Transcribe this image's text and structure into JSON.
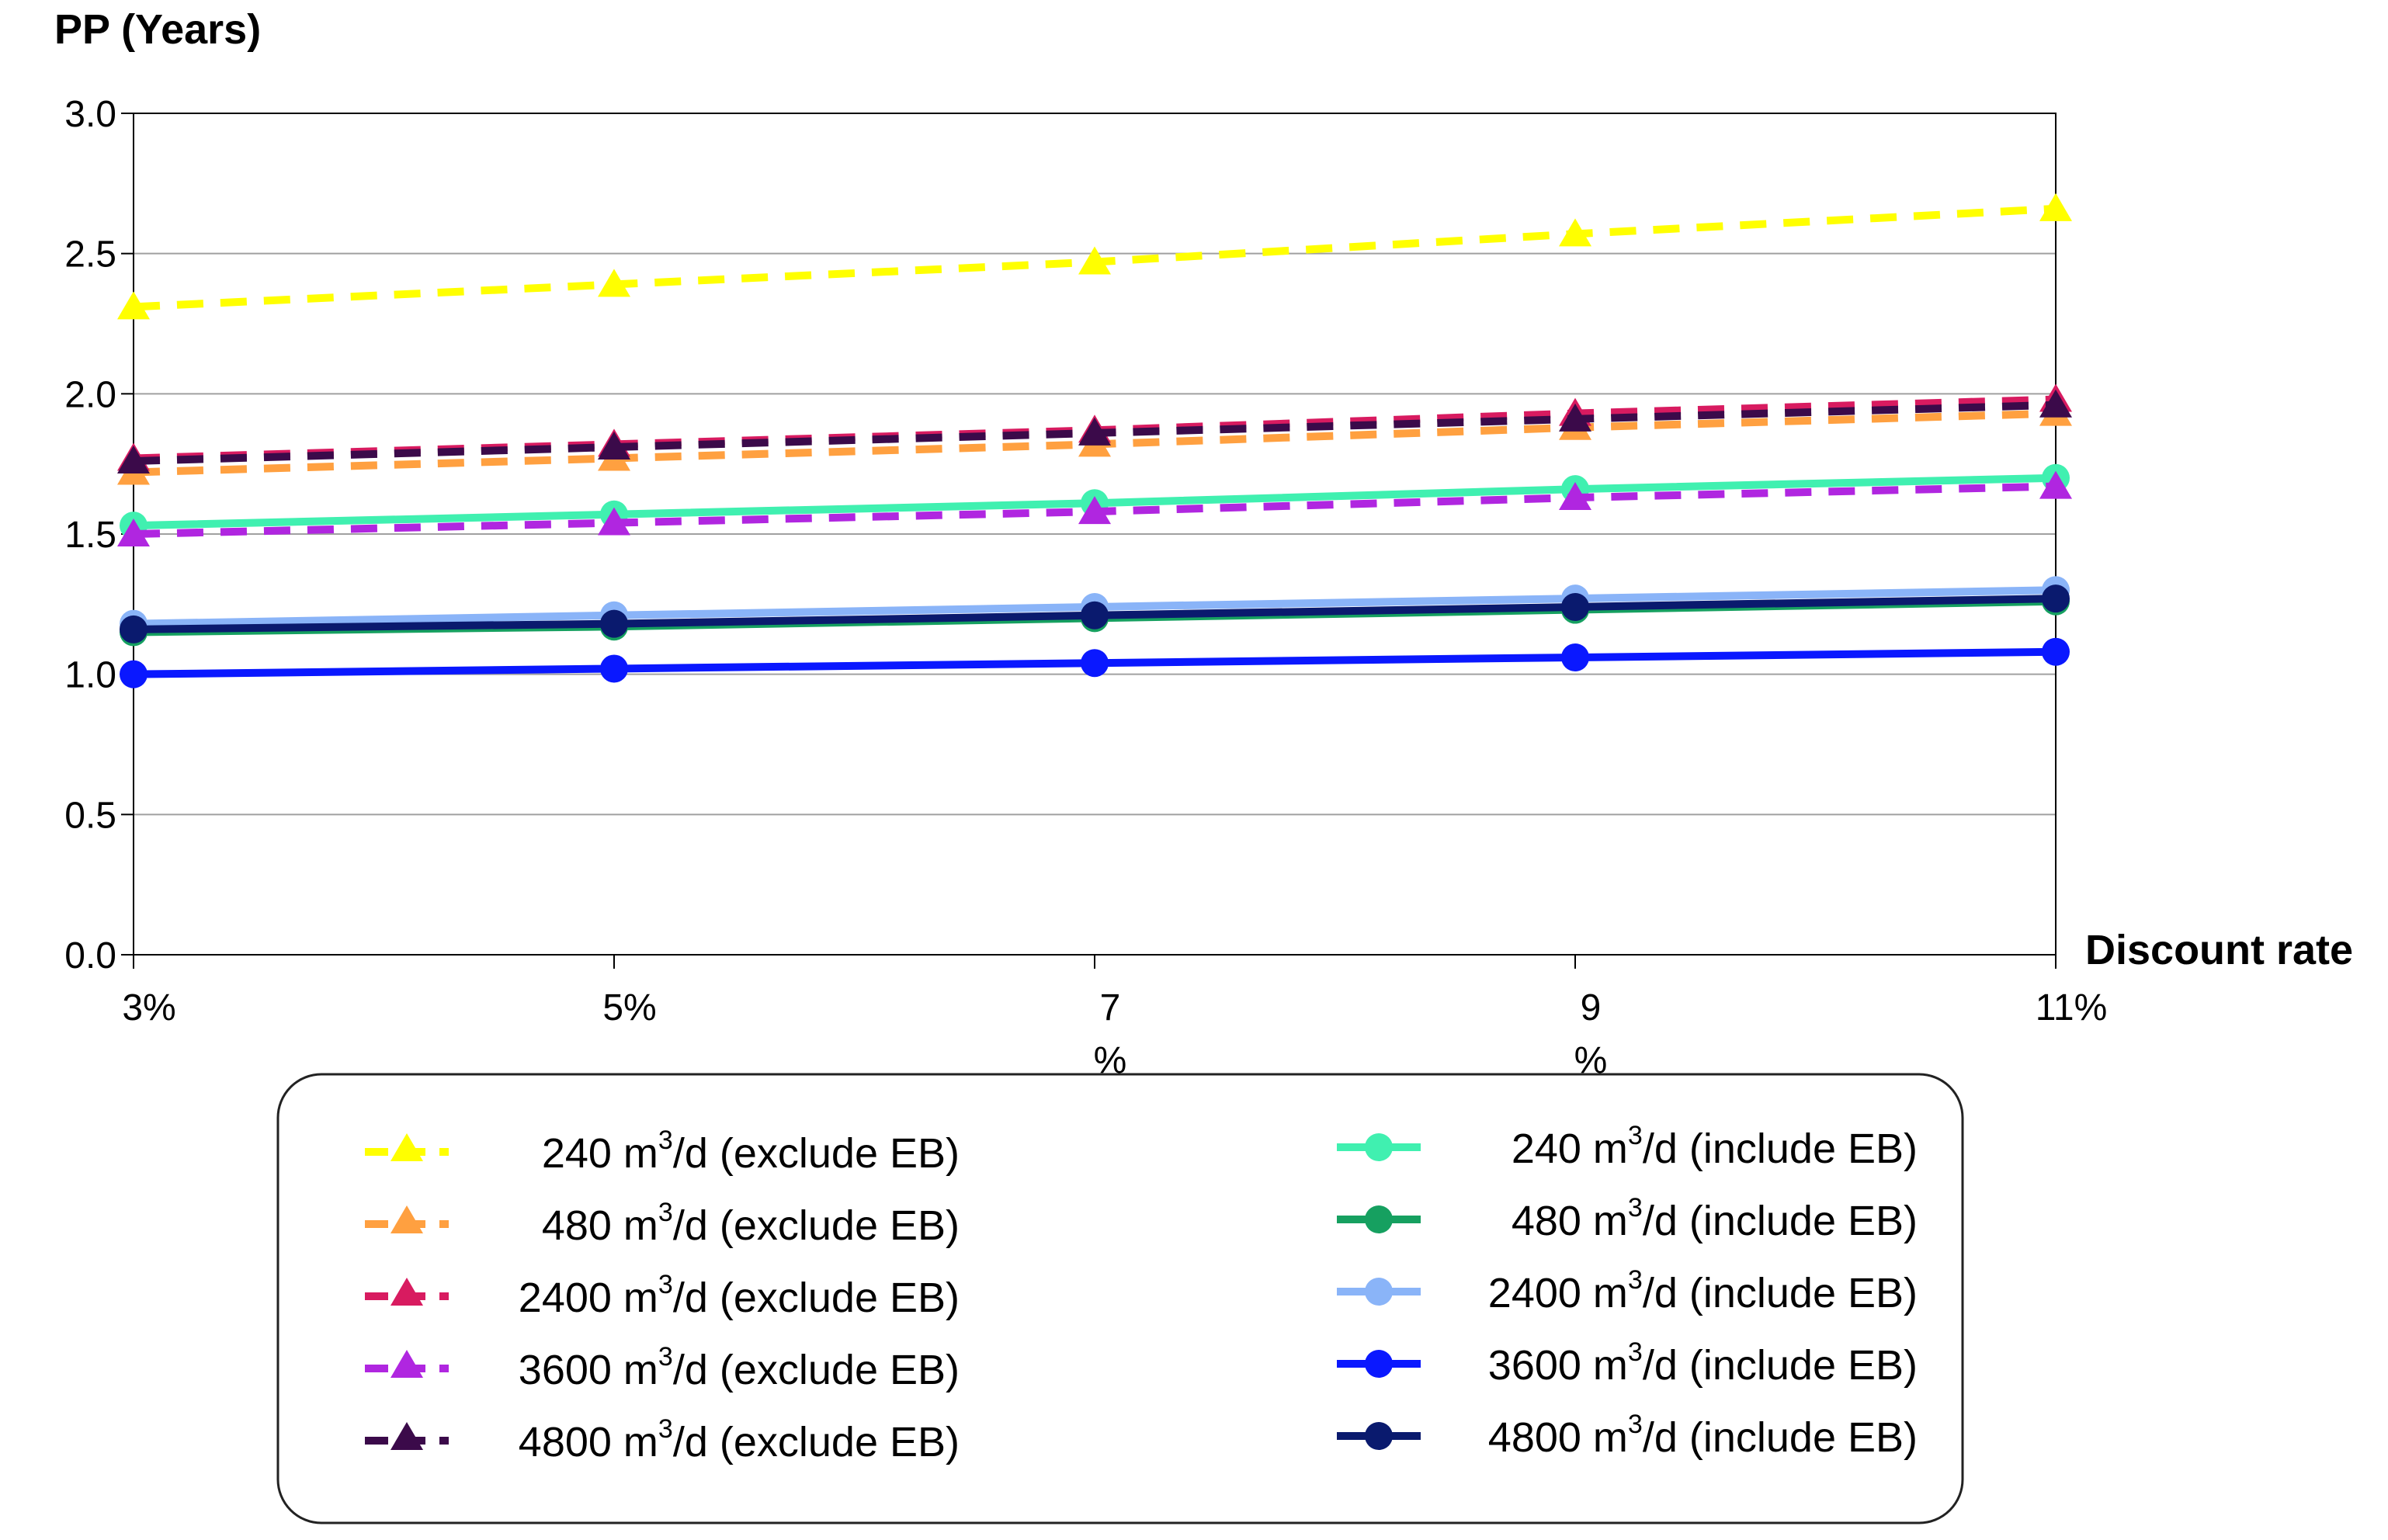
{
  "chart_data": {
    "type": "line",
    "ylabel": "PP (Years)",
    "xlabel": "Discount rate",
    "categories": [
      "3%",
      "5%",
      "7\n%",
      "9\n%",
      "11%"
    ],
    "ylim": [
      0,
      3
    ],
    "yticks": [
      "0.0",
      "0.5",
      "1.0",
      "1.5",
      "2.0",
      "2.5",
      "3.0"
    ],
    "grid": true,
    "legend_position": "bottom",
    "series": [
      {
        "name": "240 m3/d (exclude EB)",
        "capacity": "240",
        "unit_prefix": "m",
        "unit_sup": "3",
        "unit_suffix": "/d",
        "label_suffix": "(exclude EB)",
        "color": "#ffff00",
        "marker": "triangle",
        "dashed": true,
        "values": [
          2.31,
          2.39,
          2.47,
          2.57,
          2.66
        ]
      },
      {
        "name": "480 m3/d (exclude EB)",
        "capacity": "480",
        "unit_prefix": "m",
        "unit_sup": "3",
        "unit_suffix": "/d",
        "label_suffix": "(exclude EB)",
        "color": "#ffa040",
        "marker": "triangle",
        "dashed": true,
        "values": [
          1.72,
          1.77,
          1.82,
          1.88,
          1.93
        ]
      },
      {
        "name": "2400 m3/d (exclude EB)",
        "capacity": "2400",
        "unit_prefix": "m",
        "unit_sup": "3",
        "unit_suffix": "/d",
        "label_suffix": "(exclude EB)",
        "color": "#d81b60",
        "marker": "triangle",
        "dashed": true,
        "values": [
          1.77,
          1.82,
          1.87,
          1.93,
          1.98
        ]
      },
      {
        "name": "3600 m3/d (exclude EB)",
        "capacity": "3600",
        "unit_prefix": "m",
        "unit_sup": "3",
        "unit_suffix": "/d",
        "label_suffix": "(exclude EB)",
        "color": "#b026e0",
        "marker": "triangle",
        "dashed": true,
        "values": [
          1.5,
          1.54,
          1.58,
          1.63,
          1.67
        ]
      },
      {
        "name": "4800 m3/d (exclude EB)",
        "capacity": "4800",
        "unit_prefix": "m",
        "unit_sup": "3",
        "unit_suffix": "/d",
        "label_suffix": "(exclude EB)",
        "color": "#3b0a4a",
        "marker": "triangle",
        "dashed": true,
        "values": [
          1.76,
          1.81,
          1.86,
          1.91,
          1.96
        ]
      },
      {
        "name": "240 m3/d (include EB)",
        "capacity": "240",
        "unit_prefix": "m",
        "unit_sup": "3",
        "unit_suffix": "/d",
        "label_suffix": "(include EB)",
        "color": "#40f0b0",
        "marker": "circle",
        "dashed": false,
        "values": [
          1.53,
          1.57,
          1.61,
          1.66,
          1.7
        ]
      },
      {
        "name": "480 m3/d (include EB)",
        "capacity": "480",
        "unit_prefix": "m",
        "unit_sup": "3",
        "unit_suffix": "/d",
        "label_suffix": "(include EB)",
        "color": "#16a060",
        "marker": "circle",
        "dashed": false,
        "values": [
          1.15,
          1.17,
          1.2,
          1.23,
          1.26
        ]
      },
      {
        "name": "2400 m3/d (include EB)",
        "capacity": "2400",
        "unit_prefix": "m",
        "unit_sup": "3",
        "unit_suffix": "/d",
        "label_suffix": "(include EB)",
        "color": "#8ab4f8",
        "marker": "circle",
        "dashed": false,
        "values": [
          1.18,
          1.21,
          1.24,
          1.27,
          1.3
        ]
      },
      {
        "name": "3600 m3/d (include EB)",
        "capacity": "3600",
        "unit_prefix": "m",
        "unit_sup": "3",
        "unit_suffix": "/d",
        "label_suffix": "(include EB)",
        "color": "#0a18ff",
        "marker": "circle",
        "dashed": false,
        "values": [
          1.0,
          1.02,
          1.04,
          1.06,
          1.08
        ]
      },
      {
        "name": "4800 m3/d (include EB)",
        "capacity": "4800",
        "unit_prefix": "m",
        "unit_sup": "3",
        "unit_suffix": "/d",
        "label_suffix": "(include EB)",
        "color": "#0a1a6e",
        "marker": "circle",
        "dashed": false,
        "values": [
          1.16,
          1.18,
          1.21,
          1.24,
          1.27
        ]
      }
    ]
  }
}
